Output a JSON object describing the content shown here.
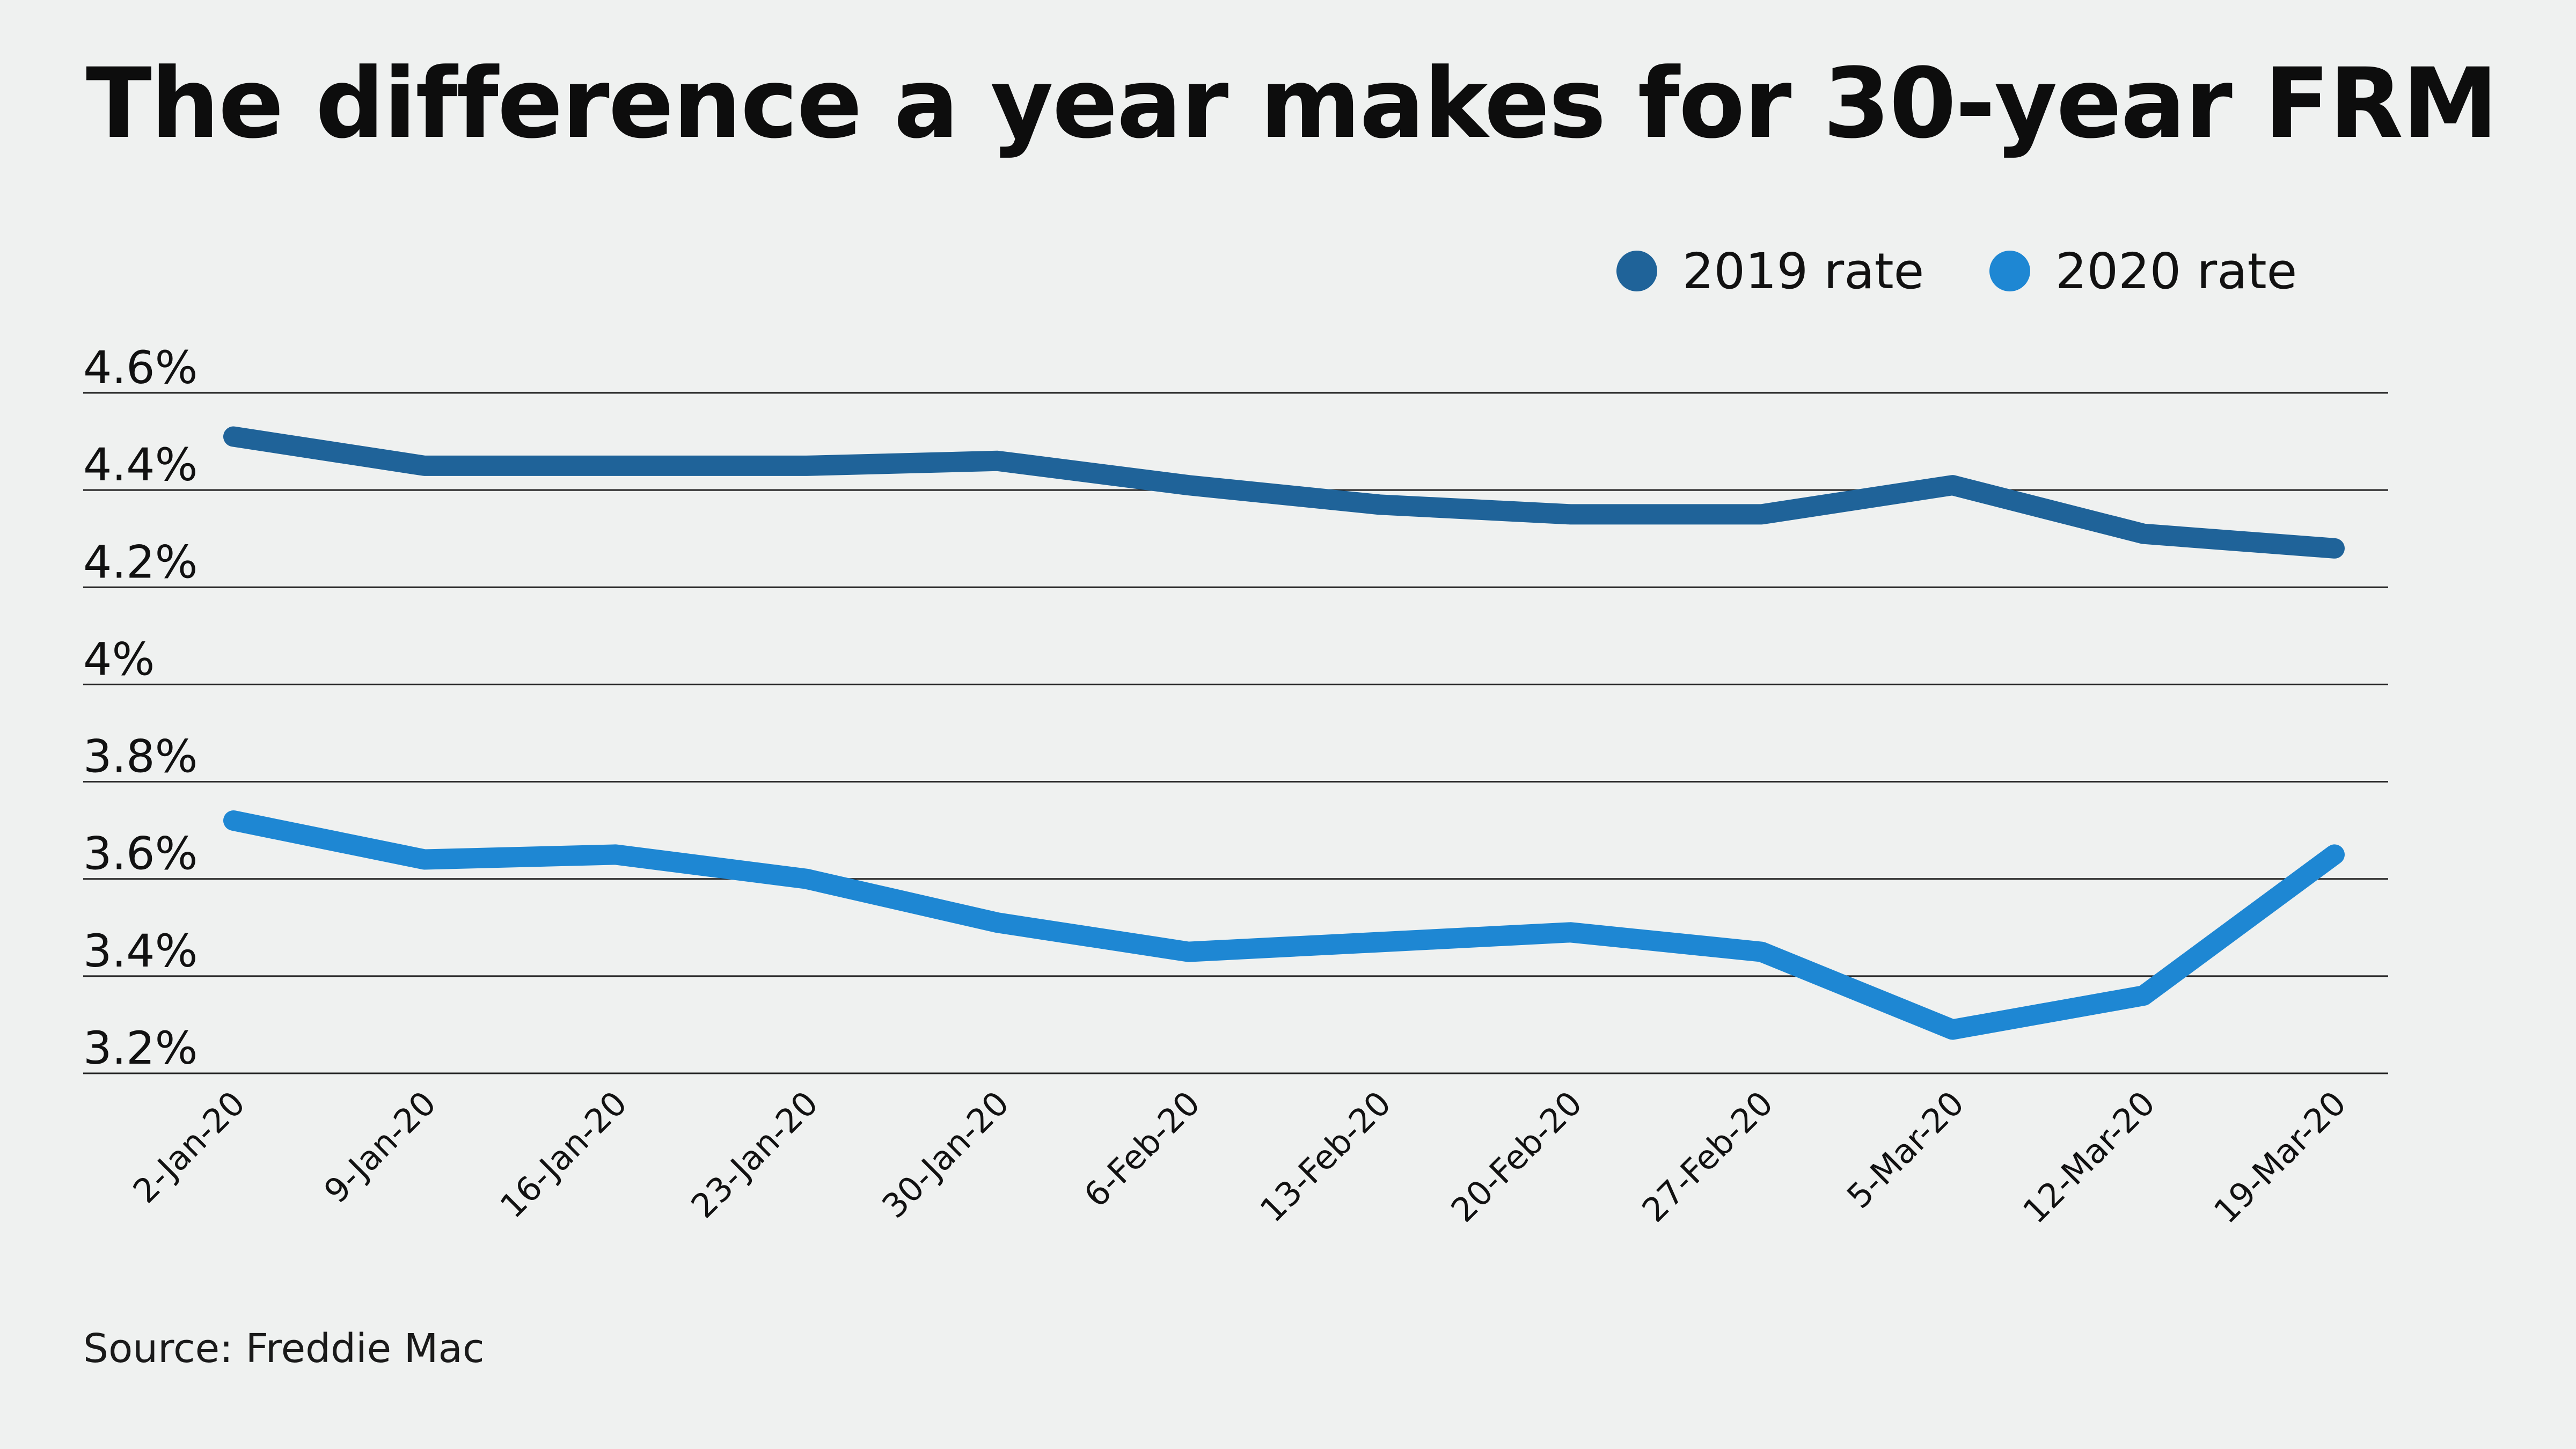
{
  "title": "The difference a year makes for 30-year FRM",
  "source": "Source: Freddie Mac",
  "chart_data": {
    "type": "line",
    "title": "The difference a year makes for 30-year FRM",
    "xlabel": "",
    "ylabel": "",
    "categories": [
      "2-Jan-20",
      "9-Jan-20",
      "16-Jan-20",
      "23-Jan-20",
      "30-Jan-20",
      "6-Feb-20",
      "13-Feb-20",
      "20-Feb-20",
      "27-Feb-20",
      "5-Mar-20",
      "12-Mar-20",
      "19-Mar-20"
    ],
    "ylim": [
      3.2,
      4.6
    ],
    "yticks": [
      3.2,
      3.4,
      3.6,
      3.8,
      4.0,
      4.2,
      4.4,
      4.6
    ],
    "ytick_labels": [
      "3.2%",
      "3.4%",
      "3.6%",
      "3.8%",
      "4%",
      "4.2%",
      "4.4%",
      "4.6%"
    ],
    "grid": "horizontal",
    "legend_position": "top-right",
    "series": [
      {
        "name": "2019 rate",
        "color": "#1f6399",
        "values": [
          4.51,
          4.45,
          4.45,
          4.45,
          4.46,
          4.41,
          4.37,
          4.35,
          4.35,
          4.41,
          4.31,
          4.28
        ]
      },
      {
        "name": "2020 rate",
        "color": "#1e87d3",
        "values": [
          3.72,
          3.64,
          3.65,
          3.6,
          3.51,
          3.45,
          3.47,
          3.49,
          3.45,
          3.29,
          3.36,
          3.65
        ]
      }
    ]
  }
}
